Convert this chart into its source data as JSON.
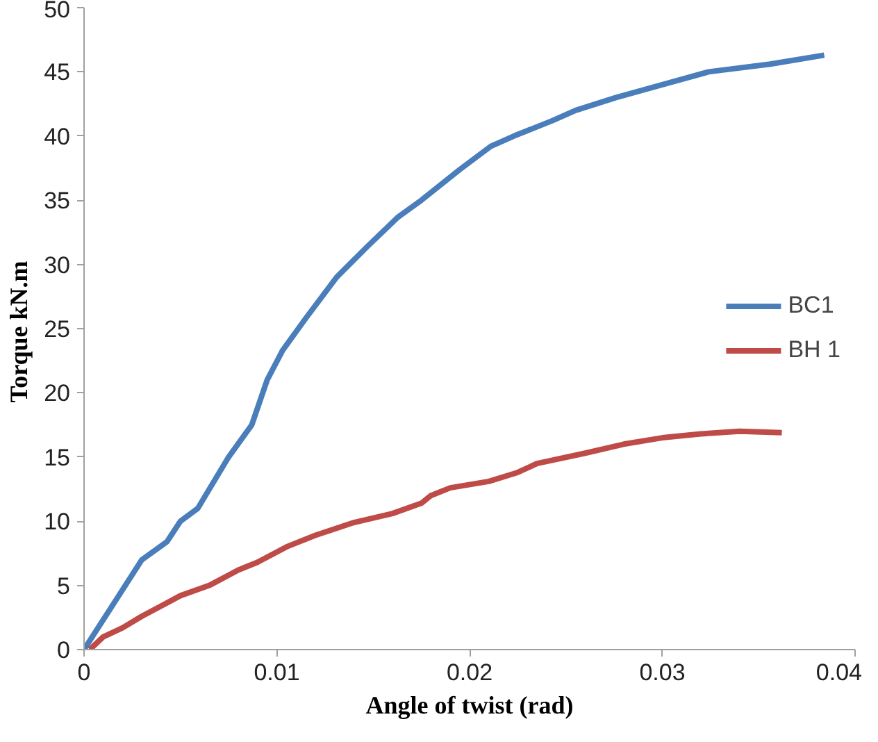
{
  "chart_data": {
    "type": "line",
    "xlabel": "Angle of twist (rad)",
    "ylabel": "Torque  kN.m",
    "xlim": [
      0,
      0.04
    ],
    "xticks": [
      0,
      0.01,
      0.02,
      0.03,
      0.04
    ],
    "ylim": [
      0,
      50
    ],
    "yticks": [
      0,
      5,
      10,
      15,
      20,
      25,
      30,
      35,
      40,
      45,
      50
    ],
    "grid": false,
    "legend": "right",
    "marker": "none",
    "line_style": "solid",
    "series": [
      {
        "name": "BC1",
        "color": "#4a7ebb",
        "x": [
          0,
          0.0015,
          0.003,
          0.0043,
          0.005,
          0.0059,
          0.0075,
          0.0087,
          0.0095,
          0.0103,
          0.0115,
          0.0131,
          0.0147,
          0.0163,
          0.0175,
          0.0195,
          0.0211,
          0.0223,
          0.0243,
          0.0255,
          0.0276,
          0.03,
          0.0324,
          0.0356,
          0.0384
        ],
        "values": [
          0,
          3.5,
          7,
          8.4,
          10,
          11,
          15,
          17.5,
          21,
          23.3,
          25.8,
          29,
          31.4,
          33.7,
          35,
          37.4,
          39.2,
          40,
          41.2,
          42,
          43,
          44,
          45,
          45.6,
          46.3
        ]
      },
      {
        "name": "BH 1",
        "color": "#be4b48",
        "x": [
          0.0003,
          0.001,
          0.002,
          0.003,
          0.004,
          0.005,
          0.0065,
          0.008,
          0.009,
          0.0105,
          0.012,
          0.014,
          0.016,
          0.0175,
          0.018,
          0.019,
          0.021,
          0.0225,
          0.0235,
          0.026,
          0.028,
          0.03,
          0.032,
          0.034,
          0.0362
        ],
        "values": [
          0,
          1,
          1.7,
          2.6,
          3.4,
          4.2,
          5,
          6.2,
          6.8,
          8,
          8.9,
          9.9,
          10.6,
          11.4,
          12,
          12.6,
          13.1,
          13.8,
          14.5,
          15.3,
          16,
          16.5,
          16.8,
          17,
          16.9
        ]
      }
    ]
  }
}
